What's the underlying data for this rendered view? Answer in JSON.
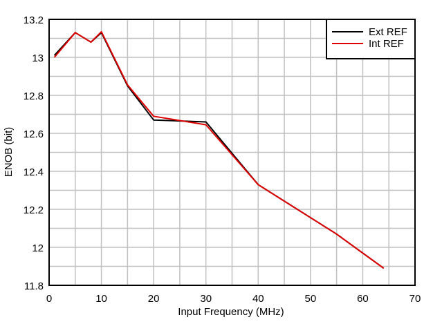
{
  "chart_data": {
    "type": "line",
    "title": "",
    "xlabel": "Input Frequency (MHz)",
    "ylabel": "ENOB (bit)",
    "xlim": [
      0,
      70
    ],
    "ylim": [
      11.8,
      13.2
    ],
    "xticks": [
      0,
      10,
      20,
      30,
      40,
      50,
      60,
      70
    ],
    "yticks": [
      11.8,
      12,
      12.2,
      12.4,
      12.6,
      12.8,
      13,
      13.2
    ],
    "ytick_labels": [
      "11.8",
      "12",
      "12.2",
      "12.4",
      "12.6",
      "12.8",
      "13",
      "13.2"
    ],
    "grid": true,
    "legend_position": "upper right",
    "series": [
      {
        "name": "Ext REF",
        "color": "#000000",
        "x": [
          1,
          5,
          8,
          10,
          15,
          20,
          30,
          40,
          55,
          64
        ],
        "y": [
          13.01,
          13.13,
          13.08,
          13.13,
          12.85,
          12.67,
          12.66,
          12.33,
          12.07,
          11.89
        ]
      },
      {
        "name": "Int REF",
        "color": "#e00000",
        "x": [
          1,
          5,
          8,
          10,
          15,
          20,
          30,
          40,
          55,
          64
        ],
        "y": [
          13.0,
          13.13,
          13.08,
          13.135,
          12.855,
          12.69,
          12.645,
          12.33,
          12.07,
          11.89
        ]
      }
    ]
  }
}
